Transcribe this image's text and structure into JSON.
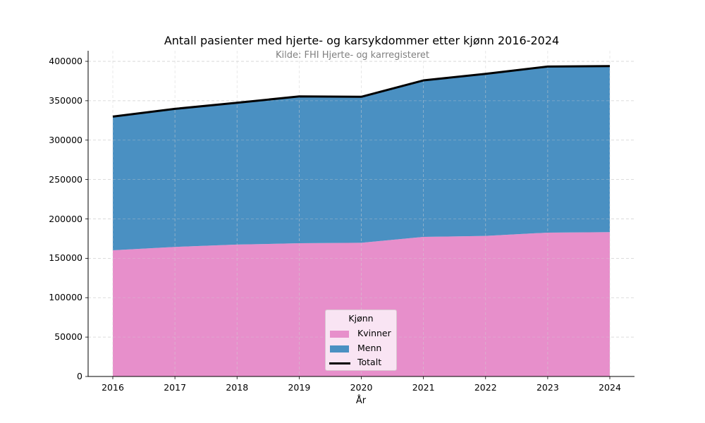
{
  "chart_data": {
    "type": "area",
    "stacked": true,
    "title": "Antall pasienter med hjerte- og karsykdommer etter kjønn 2016-2024",
    "subtitle": "Kilde: FHI Hjerte- og karregisteret",
    "xlabel": "År",
    "ylabel": "",
    "x": [
      2016,
      2017,
      2018,
      2019,
      2020,
      2021,
      2022,
      2023,
      2024
    ],
    "series": [
      {
        "name": "Kvinner",
        "type": "area",
        "color": "#e78fcb",
        "values": [
          160200,
          164400,
          167400,
          169100,
          169700,
          177200,
          178400,
          182600,
          183200
        ]
      },
      {
        "name": "Menn",
        "type": "area",
        "color": "#4a90c2",
        "values": [
          169700,
          175300,
          180000,
          186400,
          185300,
          198600,
          205700,
          210800,
          210800
        ]
      },
      {
        "name": "Totalt",
        "type": "line",
        "color": "#000000",
        "values": [
          329900,
          339700,
          347400,
          355500,
          355000,
          375800,
          384100,
          393400,
          394000
        ]
      }
    ],
    "ylim": [
      0,
      412000
    ],
    "yticks": [
      0,
      50000,
      100000,
      150000,
      200000,
      250000,
      300000,
      350000,
      400000
    ],
    "xticks": [
      2016,
      2017,
      2018,
      2019,
      2020,
      2021,
      2022,
      2023,
      2024
    ],
    "grid": true,
    "legend": {
      "title": "Kjønn",
      "position": "lower center",
      "entries": [
        "Kvinner",
        "Menn",
        "Totalt"
      ]
    }
  },
  "labels": {
    "title": "Antall pasienter med hjerte- og karsykdommer etter kjønn 2016-2024",
    "subtitle": "Kilde: FHI Hjerte- og karregisteret",
    "xlabel": "År",
    "legend_title": "Kjønn",
    "legend_items": [
      "Kvinner",
      "Menn",
      "Totalt"
    ]
  },
  "colors": {
    "kvinner": "#e78fcb",
    "menn": "#4a90c2",
    "totalt": "#000000",
    "grid": "#d0d0d0"
  }
}
